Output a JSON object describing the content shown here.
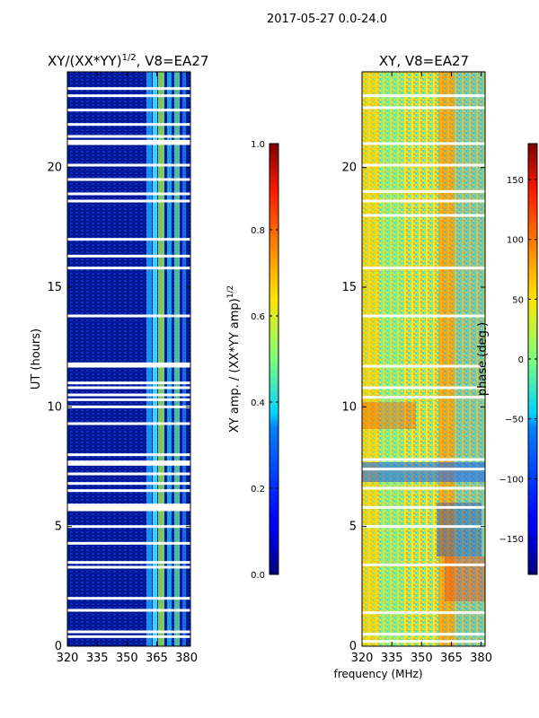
{
  "figure": {
    "suptitle": "2017-05-27 0.0-24.0",
    "xlabel": "frequency (MHz)",
    "ylabel": "UT (hours)"
  },
  "chart_data": [
    {
      "type": "heatmap",
      "title": "XY/(XX*YY)",
      "title_superscript": "1/2",
      "title_suffix": ", V8=EA27",
      "xlim": [
        320,
        382
      ],
      "ylim": [
        0,
        24
      ],
      "xticks": [
        320,
        335,
        350,
        365,
        380
      ],
      "yticks": [
        0,
        5,
        10,
        15,
        20
      ],
      "colorbar": {
        "label": "XY amp. / (XX*YY amp)",
        "label_superscript": "1/2",
        "range": [
          0.0,
          1.0
        ],
        "ticks": [
          "0.0",
          "0.2",
          "0.4",
          "0.6",
          "0.8",
          "1.0"
        ],
        "colormap": "jet"
      },
      "flagged_gap_hours": [
        0.4,
        0.6,
        1.5,
        2.0,
        3.3,
        3.5,
        4.3,
        5.0,
        5.7,
        5.8,
        5.9,
        6.5,
        6.8,
        7.2,
        7.6,
        7.7,
        8.0,
        9.3,
        10.0,
        10.3,
        10.5,
        10.8,
        11.0,
        11.7,
        11.8,
        13.8,
        15.8,
        16.3,
        17.0,
        18.6,
        18.9,
        19.5,
        20.1,
        21.0,
        21.1,
        21.3,
        21.8,
        22.4,
        23.0,
        23.3
      ]
    },
    {
      "type": "heatmap",
      "title": "XY, V8=EA27",
      "xlim": [
        320,
        382
      ],
      "ylim": [
        0,
        24
      ],
      "xticks": [
        320,
        335,
        350,
        365,
        380
      ],
      "yticks": [
        0,
        5,
        10,
        15,
        20
      ],
      "colorbar": {
        "label": "phase (deg.)",
        "range": [
          -180,
          180
        ],
        "ticks": [
          "−150",
          "−100",
          "−50",
          "0",
          "50",
          "100",
          "150"
        ],
        "colormap": "jet"
      },
      "flagged_gap_hours": [
        0.2,
        0.5,
        1.4,
        3.4,
        5.0,
        5.8,
        6.6,
        7.4,
        7.8,
        10.4,
        10.8,
        11.7,
        13.8,
        15.8,
        18.0,
        18.6,
        19.0,
        20.1,
        21.0,
        22.5,
        23.0
      ]
    }
  ]
}
